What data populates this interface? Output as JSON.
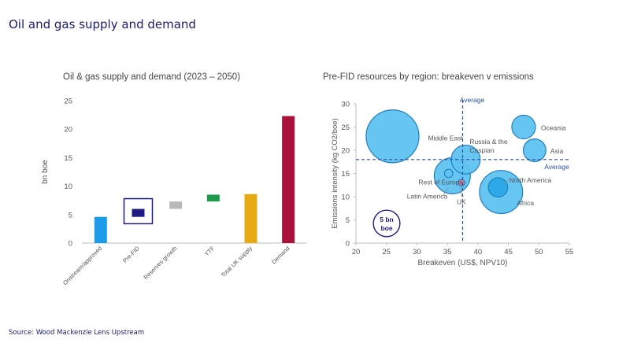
{
  "page": {
    "title": "Oil and gas supply and demand",
    "source": "Source: Wood Mackenzie Lens Upstream"
  },
  "chart_data": [
    {
      "type": "bar",
      "title": "Oil & gas supply and demand (2023 – 2050)",
      "ylabel": "bn boe",
      "xlabel": "",
      "ylim": [
        0,
        25
      ],
      "yticks": [
        0,
        5,
        10,
        15,
        20,
        25
      ],
      "categories": [
        "Onstream/approved",
        "Pre-FID",
        "Reserves growth",
        "YTF",
        "Total UK supply",
        "Demand"
      ],
      "bars": [
        {
          "category": "Onstream/approved",
          "bottom": 0,
          "top": 4.6,
          "color": "#1e9be8"
        },
        {
          "category": "Pre-FID",
          "bottom": 4.6,
          "top": 6.0,
          "color": "#1f1a84",
          "outline": {
            "bottom": 3.4,
            "top": 7.8,
            "color": "#1f1a84"
          }
        },
        {
          "category": "Reserves growth",
          "bottom": 6.0,
          "top": 7.3,
          "color": "#b8b8b8"
        },
        {
          "category": "YTF",
          "bottom": 7.3,
          "top": 8.5,
          "color": "#1d9a4a"
        },
        {
          "category": "Total UK supply",
          "bottom": 0,
          "top": 8.6,
          "color": "#e8aa12"
        },
        {
          "category": "Demand",
          "bottom": 0,
          "top": 22.3,
          "color": "#a8123c"
        }
      ],
      "grid": false
    },
    {
      "type": "scatter",
      "title": "Pre-FID resources by region: breakeven v emissions",
      "xlabel": "Breakeven (US$, NPV10)",
      "ylabel": "Emissions intensity (kg CO2/boe)",
      "xlim": [
        20,
        55
      ],
      "ylim": [
        0,
        30
      ],
      "xticks": [
        20,
        25,
        30,
        35,
        40,
        45,
        50,
        55
      ],
      "yticks": [
        0,
        5,
        10,
        15,
        20,
        25,
        30
      ],
      "points": [
        {
          "label": "Middle East",
          "x": 26.0,
          "y": 23.0,
          "size": 6.0,
          "color": "#5fc3f0"
        },
        {
          "label": "Russia & the Caspian",
          "x": 38.0,
          "y": 18.0,
          "size": 1.8,
          "color": "#5fc3f0"
        },
        {
          "label": "Oceania",
          "x": 47.5,
          "y": 25.0,
          "size": 1.2,
          "color": "#5fc3f0"
        },
        {
          "label": "Asia",
          "x": 49.3,
          "y": 20.0,
          "size": 1.1,
          "color": "#5fc3f0"
        },
        {
          "label": "Rest of Europe",
          "x": 35.8,
          "y": 14.5,
          "size": 2.8,
          "color": "#5fc3f0"
        },
        {
          "label": "Latin America",
          "x": 35.2,
          "y": 15.0,
          "size": 0.15,
          "color": "#5fc3f0"
        },
        {
          "label": "UK",
          "x": 37.3,
          "y": 13.0,
          "size": 0.1,
          "color": "#d67fa0"
        },
        {
          "label": "North America",
          "x": 43.3,
          "y": 12.0,
          "size": 0.8,
          "color": "#2aa8e6"
        },
        {
          "label": "Africa",
          "x": 43.8,
          "y": 11.0,
          "size": 4.0,
          "color": "#5fc3f0"
        }
      ],
      "reference_lines": [
        {
          "orientation": "vertical",
          "value": 37.5,
          "label": "Average"
        },
        {
          "orientation": "horizontal",
          "value": 18.0,
          "label": "Average"
        }
      ],
      "size_legend": {
        "label_line1": "5 bn",
        "label_line2": "boe",
        "size": 5.0
      },
      "grid": false
    }
  ]
}
